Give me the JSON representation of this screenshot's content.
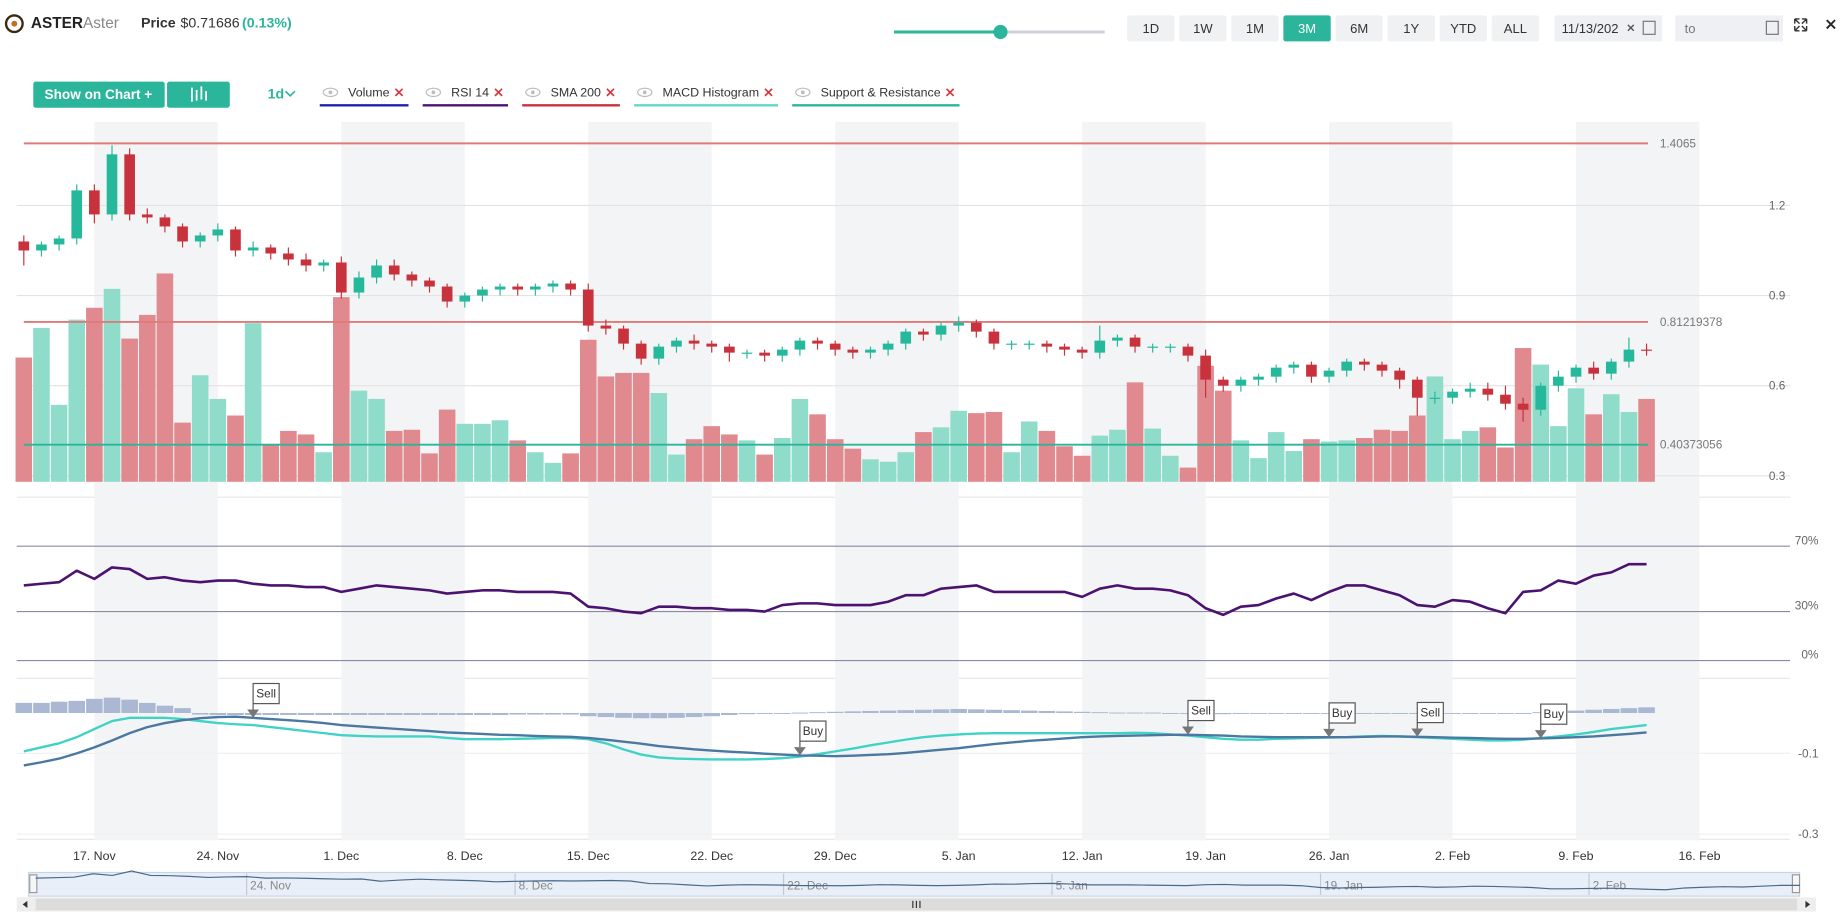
{
  "header": {
    "symbol": "ASTER",
    "name": "Aster",
    "price_label": "Price",
    "price": "$0.71686",
    "change": "(0.13%)"
  },
  "toolbar": {
    "ranges": [
      "1D",
      "1W",
      "1M",
      "3M",
      "6M",
      "1Y",
      "YTD",
      "ALL"
    ],
    "active_range": "3M",
    "date_from": "11/13/202",
    "date_to": "to",
    "show_on_chart": "Show on Chart +",
    "interval": "1d",
    "indicators": [
      {
        "name": "Volume",
        "color": "#2020b0"
      },
      {
        "name": "RSI 14",
        "color": "#4b1270"
      },
      {
        "name": "SMA 200",
        "color": "#c8323c"
      },
      {
        "name": "MACD Histogram",
        "color": "#5fd8cc"
      },
      {
        "name": "Support & Resistance",
        "color": "#2bb59a"
      }
    ]
  },
  "chart_data": {
    "type": "candlestick",
    "categories": [
      null,
      null,
      null,
      null,
      "17. Nov",
      null,
      null,
      null,
      null,
      null,
      null,
      "24. Nov",
      null,
      null,
      null,
      null,
      null,
      null,
      "1. Dec",
      null,
      null,
      null,
      null,
      null,
      null,
      "8. Dec",
      null,
      null,
      null,
      null,
      null,
      null,
      "15. Dec",
      null,
      null,
      null,
      null,
      null,
      null,
      "22. Dec",
      null,
      null,
      null,
      null,
      null,
      null,
      "29. Dec",
      null,
      null,
      null,
      null,
      null,
      null,
      "5. Jan",
      null,
      null,
      null,
      null,
      null,
      null,
      "12. Jan",
      null,
      null,
      null,
      null,
      null,
      null,
      "19. Jan",
      null,
      null,
      null,
      null,
      null,
      null,
      "26. Jan",
      null,
      null,
      null,
      null,
      null,
      null,
      "2. Feb",
      null,
      null,
      null,
      null,
      null,
      null,
      "9. Feb",
      null,
      null,
      null,
      null,
      null,
      null,
      "16. Feb",
      null,
      null,
      null,
      null
    ],
    "open": [
      1.08,
      1.05,
      1.07,
      1.09,
      1.25,
      1.17,
      1.37,
      1.17,
      1.16,
      1.13,
      1.08,
      1.1,
      1.12,
      1.05,
      1.06,
      1.04,
      1.02,
      1.0,
      1.01,
      0.91,
      0.96,
      1.0,
      0.97,
      0.95,
      0.93,
      0.88,
      0.9,
      0.92,
      0.93,
      0.92,
      0.93,
      0.94,
      0.92,
      0.8,
      0.79,
      0.74,
      0.69,
      0.73,
      0.75,
      0.74,
      0.73,
      0.71,
      0.71,
      0.7,
      0.72,
      0.75,
      0.74,
      0.72,
      0.71,
      0.72,
      0.74,
      0.78,
      0.77,
      0.8,
      0.81,
      0.78,
      0.74,
      0.74,
      0.74,
      0.73,
      0.72,
      0.71,
      0.75,
      0.76,
      0.73,
      0.73,
      0.73,
      0.7,
      0.62,
      0.6,
      0.62,
      0.63,
      0.66,
      0.67,
      0.63,
      0.65,
      0.68,
      0.67,
      0.65,
      0.62,
      0.56,
      0.56,
      0.58,
      0.59,
      0.57,
      0.54,
      0.52,
      0.6,
      0.63,
      0.66,
      0.64,
      0.68,
      0.72,
      null,
      null,
      null,
      null,
      null,
      null,
      null
    ],
    "high": [
      1.1,
      1.08,
      1.1,
      1.27,
      1.27,
      1.4,
      1.39,
      1.19,
      1.17,
      1.14,
      1.11,
      1.14,
      1.13,
      1.08,
      1.07,
      1.06,
      1.04,
      1.02,
      1.03,
      0.98,
      1.02,
      1.02,
      0.98,
      0.96,
      0.94,
      0.91,
      0.93,
      0.94,
      0.94,
      0.94,
      0.95,
      0.95,
      0.94,
      0.82,
      0.8,
      0.75,
      0.74,
      0.76,
      0.77,
      0.75,
      0.74,
      0.72,
      0.72,
      0.73,
      0.76,
      0.76,
      0.75,
      0.73,
      0.73,
      0.75,
      0.79,
      0.79,
      0.81,
      0.83,
      0.82,
      0.79,
      0.75,
      0.75,
      0.75,
      0.74,
      0.73,
      0.8,
      0.77,
      0.77,
      0.74,
      0.74,
      0.74,
      0.72,
      0.63,
      0.63,
      0.64,
      0.67,
      0.68,
      0.68,
      0.66,
      0.69,
      0.69,
      0.68,
      0.66,
      0.63,
      0.58,
      0.59,
      0.61,
      0.61,
      0.6,
      0.56,
      0.61,
      0.65,
      0.67,
      0.68,
      0.69,
      0.76,
      0.74,
      null,
      null,
      null,
      null,
      null,
      null,
      null
    ],
    "low": [
      1.0,
      1.03,
      1.05,
      1.07,
      1.14,
      1.15,
      1.15,
      1.14,
      1.11,
      1.06,
      1.06,
      1.08,
      1.03,
      1.03,
      1.02,
      1.0,
      0.98,
      0.98,
      0.89,
      0.89,
      0.94,
      0.95,
      0.93,
      0.91,
      0.86,
      0.86,
      0.88,
      0.9,
      0.9,
      0.9,
      0.91,
      0.9,
      0.78,
      0.77,
      0.72,
      0.67,
      0.67,
      0.71,
      0.72,
      0.71,
      0.68,
      0.69,
      0.68,
      0.68,
      0.7,
      0.72,
      0.7,
      0.69,
      0.69,
      0.7,
      0.72,
      0.75,
      0.75,
      0.78,
      0.76,
      0.72,
      0.72,
      0.72,
      0.71,
      0.7,
      0.69,
      0.69,
      0.73,
      0.71,
      0.71,
      0.71,
      0.68,
      0.56,
      0.58,
      0.58,
      0.6,
      0.61,
      0.64,
      0.61,
      0.61,
      0.63,
      0.65,
      0.63,
      0.59,
      0.5,
      0.54,
      0.54,
      0.56,
      0.55,
      0.52,
      0.48,
      0.5,
      0.58,
      0.61,
      0.62,
      0.62,
      0.66,
      0.7,
      null,
      null,
      null,
      null,
      null,
      null,
      null
    ],
    "close": [
      1.05,
      1.07,
      1.09,
      1.25,
      1.17,
      1.37,
      1.17,
      1.16,
      1.13,
      1.08,
      1.1,
      1.12,
      1.05,
      1.06,
      1.04,
      1.02,
      1.0,
      1.01,
      0.91,
      0.96,
      1.0,
      0.97,
      0.95,
      0.93,
      0.88,
      0.9,
      0.92,
      0.93,
      0.92,
      0.93,
      0.94,
      0.92,
      0.8,
      0.79,
      0.74,
      0.69,
      0.73,
      0.75,
      0.74,
      0.73,
      0.71,
      0.71,
      0.7,
      0.72,
      0.75,
      0.74,
      0.72,
      0.71,
      0.72,
      0.74,
      0.78,
      0.77,
      0.8,
      0.81,
      0.78,
      0.74,
      0.74,
      0.74,
      0.73,
      0.72,
      0.71,
      0.75,
      0.76,
      0.73,
      0.73,
      0.73,
      0.7,
      0.62,
      0.6,
      0.62,
      0.63,
      0.66,
      0.67,
      0.63,
      0.65,
      0.68,
      0.67,
      0.65,
      0.62,
      0.56,
      0.56,
      0.58,
      0.59,
      0.57,
      0.54,
      0.52,
      0.6,
      0.63,
      0.66,
      0.64,
      0.68,
      0.72,
      0.717,
      null,
      null,
      null,
      null,
      null,
      null,
      null
    ],
    "volume": [
      105,
      130,
      65,
      137,
      147,
      163,
      121,
      141,
      176,
      50,
      90,
      70,
      56,
      134,
      32,
      43,
      40,
      25,
      156,
      77,
      70,
      43,
      44,
      24,
      61,
      49,
      49,
      52,
      35,
      25,
      16,
      24,
      120,
      89,
      92,
      92,
      75,
      23,
      36,
      47,
      40,
      35,
      23,
      37,
      70,
      57,
      36,
      28,
      19,
      17,
      25,
      42,
      46,
      60,
      58,
      59,
      25,
      51,
      43,
      30,
      22,
      39,
      44,
      84,
      45,
      22,
      12,
      98,
      77,
      35,
      20,
      42,
      26,
      36,
      34,
      35,
      37,
      44,
      43,
      56,
      89,
      36,
      43,
      46,
      29,
      113,
      99,
      47,
      79,
      57,
      74,
      59,
      70,
      null,
      null,
      null,
      null,
      null,
      null,
      null
    ],
    "up_color": "#26b89a",
    "down_color": "#c8323c",
    "volume_up_color": "#8fdccb",
    "volume_down_color": "#e0898f",
    "ylim": [
      0.28,
      1.47
    ],
    "yticks": [
      0.3,
      0.6,
      0.9,
      1.2
    ],
    "levels": [
      {
        "value": 1.4065,
        "color": "#e07a7a"
      },
      {
        "value": 0.81219378,
        "color": "#e07a7a"
      },
      {
        "value": 0.40373056,
        "color": "#2bb59a"
      }
    ],
    "rsi": {
      "type": "line",
      "color": "#4b1270",
      "values": [
        46,
        47,
        48,
        55,
        50,
        57,
        56,
        50,
        51,
        49,
        48,
        49,
        49,
        47,
        46,
        46,
        45,
        45,
        42,
        44,
        46,
        45,
        44,
        43,
        41,
        42,
        43,
        43,
        42,
        42,
        42,
        41,
        33,
        32,
        30,
        29,
        33,
        33,
        32,
        32,
        31,
        31,
        30,
        34,
        35,
        35,
        34,
        34,
        34,
        36,
        40,
        40,
        44,
        45,
        46,
        42,
        42,
        42,
        42,
        42,
        39,
        44,
        46,
        44,
        44,
        43,
        40,
        32,
        28,
        33,
        34,
        38,
        41,
        37,
        42,
        46,
        46,
        43,
        40,
        34,
        33,
        37,
        36,
        32,
        29,
        42,
        43,
        49,
        47,
        52,
        54,
        59,
        59,
        null,
        null,
        null,
        null,
        null,
        null,
        null
      ],
      "ylim": [
        0,
        100
      ],
      "yticks": [
        {
          "value": 70,
          "label": "70%"
        },
        {
          "value": 30,
          "label": "30%"
        },
        {
          "value": 0,
          "label": "0%"
        }
      ]
    },
    "macd": {
      "type": "macd",
      "macd_color": "#4a78a0",
      "signal_color": "#3fd3c6",
      "hist_color": "#aab8d4",
      "macd": [
        -0.13,
        -0.122,
        -0.113,
        -0.1,
        -0.085,
        -0.068,
        -0.05,
        -0.035,
        -0.025,
        -0.018,
        -0.013,
        -0.01,
        -0.009,
        -0.012,
        -0.015,
        -0.018,
        -0.021,
        -0.025,
        -0.03,
        -0.033,
        -0.036,
        -0.039,
        -0.042,
        -0.045,
        -0.048,
        -0.05,
        -0.052,
        -0.054,
        -0.055,
        -0.057,
        -0.058,
        -0.059,
        -0.062,
        -0.066,
        -0.071,
        -0.076,
        -0.082,
        -0.086,
        -0.09,
        -0.093,
        -0.096,
        -0.098,
        -0.101,
        -0.103,
        -0.105,
        -0.106,
        -0.107,
        -0.106,
        -0.104,
        -0.102,
        -0.099,
        -0.095,
        -0.091,
        -0.087,
        -0.082,
        -0.077,
        -0.073,
        -0.069,
        -0.066,
        -0.063,
        -0.06,
        -0.058,
        -0.057,
        -0.056,
        -0.055,
        -0.054,
        -0.054,
        -0.055,
        -0.056,
        -0.058,
        -0.059,
        -0.06,
        -0.06,
        -0.06,
        -0.06,
        -0.06,
        -0.059,
        -0.058,
        -0.058,
        -0.059,
        -0.06,
        -0.061,
        -0.062,
        -0.063,
        -0.064,
        -0.064,
        -0.063,
        -0.062,
        -0.06,
        -0.058,
        -0.055,
        -0.052,
        -0.048,
        null,
        null,
        null,
        null,
        null,
        null,
        null
      ],
      "signal": [
        -0.095,
        -0.085,
        -0.075,
        -0.06,
        -0.04,
        -0.02,
        -0.012,
        -0.012,
        -0.012,
        -0.015,
        -0.02,
        -0.025,
        -0.028,
        -0.03,
        -0.035,
        -0.04,
        -0.045,
        -0.05,
        -0.055,
        -0.057,
        -0.058,
        -0.058,
        -0.058,
        -0.058,
        -0.062,
        -0.065,
        -0.065,
        -0.065,
        -0.064,
        -0.063,
        -0.062,
        -0.062,
        -0.065,
        -0.075,
        -0.09,
        -0.103,
        -0.11,
        -0.113,
        -0.114,
        -0.115,
        -0.115,
        -0.115,
        -0.114,
        -0.112,
        -0.108,
        -0.102,
        -0.095,
        -0.088,
        -0.08,
        -0.073,
        -0.066,
        -0.06,
        -0.056,
        -0.053,
        -0.051,
        -0.05,
        -0.05,
        -0.05,
        -0.05,
        -0.05,
        -0.05,
        -0.05,
        -0.05,
        -0.049,
        -0.05,
        -0.053,
        -0.056,
        -0.06,
        -0.064,
        -0.066,
        -0.066,
        -0.064,
        -0.063,
        -0.062,
        -0.061,
        -0.06,
        -0.058,
        -0.057,
        -0.058,
        -0.06,
        -0.062,
        -0.064,
        -0.066,
        -0.068,
        -0.068,
        -0.066,
        -0.062,
        -0.058,
        -0.053,
        -0.047,
        -0.04,
        -0.035,
        -0.03,
        null,
        null,
        null,
        null,
        null,
        null,
        null
      ],
      "histogram": [
        0.025,
        0.025,
        0.028,
        0.03,
        0.035,
        0.038,
        0.033,
        0.025,
        0.018,
        0.012,
        -0.004,
        -0.005,
        -0.005,
        -0.005,
        -0.005,
        -0.005,
        -0.005,
        -0.005,
        -0.005,
        -0.005,
        -0.005,
        -0.005,
        -0.005,
        -0.005,
        -0.005,
        -0.005,
        -0.005,
        -0.005,
        -0.004,
        -0.004,
        -0.004,
        -0.004,
        -0.008,
        -0.01,
        -0.012,
        -0.013,
        -0.013,
        -0.012,
        -0.01,
        -0.008,
        -0.005,
        -0.003,
        -0.002,
        -0.001,
        0.001,
        0.002,
        0.003,
        0.004,
        0.005,
        0.006,
        0.007,
        0.008,
        0.009,
        0.01,
        0.009,
        0.008,
        0.007,
        0.006,
        0.005,
        0.004,
        0.003,
        0.002,
        0.001,
        0.001,
        0.001,
        -0.001,
        -0.002,
        -0.003,
        -0.003,
        -0.002,
        -0.002,
        -0.002,
        -0.002,
        -0.002,
        -0.002,
        -0.002,
        -0.002,
        -0.002,
        -0.002,
        -0.002,
        -0.002,
        -0.002,
        -0.002,
        -0.002,
        -0.002,
        -0.002,
        0.002,
        0.004,
        0.006,
        0.008,
        0.01,
        0.012,
        0.014,
        null,
        null,
        null,
        null,
        null,
        null,
        null
      ],
      "signals": [
        null,
        null,
        null,
        null,
        null,
        null,
        null,
        null,
        null,
        null,
        null,
        null,
        null,
        "Sell",
        null,
        null,
        null,
        null,
        null,
        null,
        null,
        null,
        null,
        null,
        null,
        null,
        null,
        null,
        null,
        null,
        null,
        null,
        null,
        null,
        null,
        null,
        null,
        null,
        null,
        null,
        null,
        null,
        null,
        null,
        "Buy",
        null,
        null,
        null,
        null,
        null,
        null,
        null,
        null,
        null,
        null,
        null,
        null,
        null,
        null,
        null,
        null,
        null,
        null,
        null,
        null,
        null,
        "Sell",
        null,
        null,
        null,
        null,
        null,
        null,
        null,
        "Buy",
        null,
        null,
        null,
        null,
        "Sell",
        null,
        null,
        null,
        null,
        null,
        null,
        "Buy",
        null,
        null,
        null,
        null,
        null,
        null,
        null,
        null,
        null,
        null,
        null,
        null,
        null
      ],
      "ylim": [
        -0.31,
        0.08
      ],
      "yticks": [
        -0.1,
        -0.3
      ]
    }
  }
}
